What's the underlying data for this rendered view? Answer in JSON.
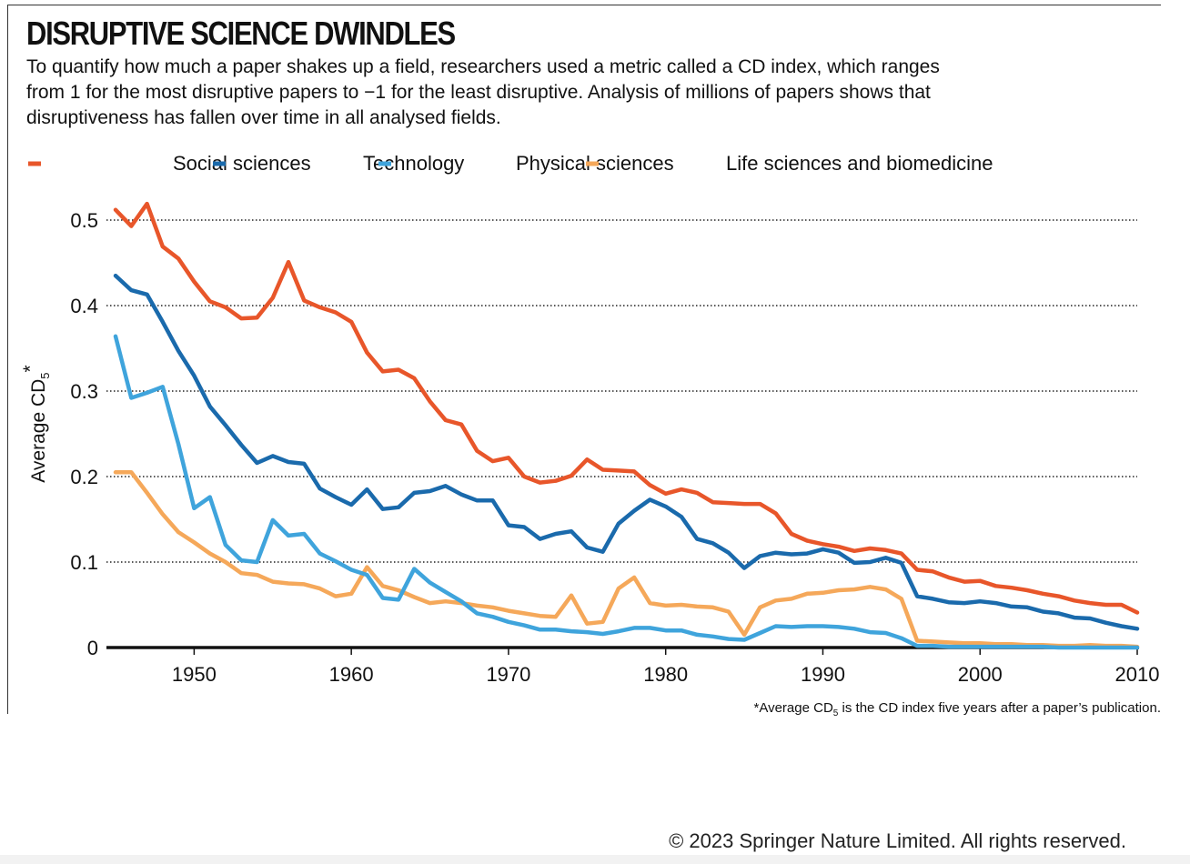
{
  "header": {
    "title": "DISRUPTIVE SCIENCE DWINDLES",
    "subtitle": "To quantify how much a paper shakes up a field, researchers used a metric called a CD index, which ranges from 1 for the most disruptive papers to −1 for the least disruptive. Analysis of millions of papers shows that disruptiveness has fallen over time in all analysed fields."
  },
  "footnote": {
    "prefix": "*Average CD",
    "subscript": "5",
    "suffix": " is the CD index five years after a paper’s publication."
  },
  "copyright": "© 2023 Springer Nature Limited. All rights reserved.",
  "chart_data": {
    "type": "line",
    "xlabel": "",
    "ylabel": "Average CD",
    "ylabel_subscript": "5",
    "ylabel_suffix": "*",
    "xlim": [
      1945,
      2010
    ],
    "ylim": [
      0,
      0.5
    ],
    "xticks": [
      1950,
      1960,
      1970,
      1980,
      1990,
      2000,
      2010
    ],
    "yticks": [
      0,
      0.1,
      0.2,
      0.3,
      0.4,
      0.5
    ],
    "ytick_labels": [
      "0",
      "0.1",
      "0.2",
      "0.3",
      "0.4",
      "0.5"
    ],
    "grid": "horizontal dotted",
    "legend_position": "top",
    "x": [
      1945,
      1946,
      1947,
      1948,
      1949,
      1950,
      1951,
      1952,
      1953,
      1954,
      1955,
      1956,
      1957,
      1958,
      1959,
      1960,
      1961,
      1962,
      1963,
      1964,
      1965,
      1966,
      1967,
      1968,
      1969,
      1970,
      1971,
      1972,
      1973,
      1974,
      1975,
      1976,
      1977,
      1978,
      1979,
      1980,
      1981,
      1982,
      1983,
      1984,
      1985,
      1986,
      1987,
      1988,
      1989,
      1990,
      1991,
      1992,
      1993,
      1994,
      1995,
      1996,
      1997,
      1998,
      1999,
      2000,
      2001,
      2002,
      2003,
      2004,
      2005,
      2006,
      2007,
      2008,
      2009,
      2010
    ],
    "series": [
      {
        "name": "Social sciences",
        "color": "#e8562a",
        "values": [
          0.512,
          0.493,
          0.519,
          0.469,
          0.455,
          0.428,
          0.405,
          0.398,
          0.385,
          0.386,
          0.409,
          0.451,
          0.406,
          0.398,
          0.392,
          0.381,
          0.345,
          0.323,
          0.325,
          0.315,
          0.288,
          0.266,
          0.261,
          0.23,
          0.218,
          0.222,
          0.2,
          0.193,
          0.195,
          0.201,
          0.22,
          0.208,
          0.207,
          0.206,
          0.19,
          0.18,
          0.185,
          0.181,
          0.17,
          0.169,
          0.168,
          0.168,
          0.157,
          0.133,
          0.125,
          0.121,
          0.118,
          0.113,
          0.116,
          0.114,
          0.11,
          0.091,
          0.089,
          0.082,
          0.077,
          0.078,
          0.072,
          0.07,
          0.067,
          0.063,
          0.06,
          0.055,
          0.052,
          0.05,
          0.05,
          0.041
        ]
      },
      {
        "name": "Technology",
        "color": "#1a6aac",
        "values": [
          0.435,
          0.418,
          0.413,
          0.381,
          0.347,
          0.318,
          0.282,
          0.26,
          0.237,
          0.216,
          0.224,
          0.217,
          0.215,
          0.186,
          0.176,
          0.167,
          0.185,
          0.162,
          0.164,
          0.181,
          0.183,
          0.189,
          0.179,
          0.172,
          0.172,
          0.143,
          0.141,
          0.127,
          0.133,
          0.136,
          0.117,
          0.112,
          0.145,
          0.16,
          0.173,
          0.165,
          0.153,
          0.127,
          0.122,
          0.111,
          0.093,
          0.107,
          0.111,
          0.109,
          0.11,
          0.115,
          0.111,
          0.099,
          0.1,
          0.105,
          0.099,
          0.06,
          0.057,
          0.053,
          0.052,
          0.054,
          0.052,
          0.048,
          0.047,
          0.042,
          0.04,
          0.035,
          0.034,
          0.029,
          0.025,
          0.022
        ]
      },
      {
        "name": "Physical sciences",
        "color": "#3fa4dc",
        "values": [
          0.364,
          0.292,
          0.298,
          0.305,
          0.238,
          0.163,
          0.176,
          0.12,
          0.102,
          0.1,
          0.149,
          0.131,
          0.133,
          0.11,
          0.101,
          0.091,
          0.085,
          0.058,
          0.056,
          0.092,
          0.076,
          0.065,
          0.054,
          0.04,
          0.036,
          0.03,
          0.026,
          0.021,
          0.021,
          0.019,
          0.018,
          0.016,
          0.019,
          0.023,
          0.023,
          0.02,
          0.02,
          0.015,
          0.013,
          0.01,
          0.009,
          0.017,
          0.025,
          0.024,
          0.025,
          0.025,
          0.024,
          0.022,
          0.018,
          0.017,
          0.011,
          0.002,
          0.002,
          0.001,
          0.001,
          0.001,
          0.001,
          0.001,
          0.001,
          0.001,
          0.0,
          0.0,
          0.0,
          0.0,
          0.0,
          0.0
        ]
      },
      {
        "name": "Life sciences and biomedicine",
        "color": "#f5a85a",
        "values": [
          0.205,
          0.205,
          0.181,
          0.156,
          0.135,
          0.123,
          0.11,
          0.1,
          0.087,
          0.085,
          0.077,
          0.075,
          0.074,
          0.069,
          0.06,
          0.063,
          0.094,
          0.072,
          0.067,
          0.059,
          0.052,
          0.054,
          0.052,
          0.049,
          0.047,
          0.043,
          0.04,
          0.037,
          0.036,
          0.061,
          0.028,
          0.03,
          0.069,
          0.082,
          0.052,
          0.049,
          0.05,
          0.048,
          0.047,
          0.042,
          0.015,
          0.047,
          0.055,
          0.057,
          0.063,
          0.064,
          0.067,
          0.068,
          0.071,
          0.068,
          0.057,
          0.008,
          0.007,
          0.006,
          0.005,
          0.005,
          0.004,
          0.004,
          0.003,
          0.003,
          0.002,
          0.002,
          0.003,
          0.002,
          0.002,
          0.001
        ]
      }
    ]
  }
}
